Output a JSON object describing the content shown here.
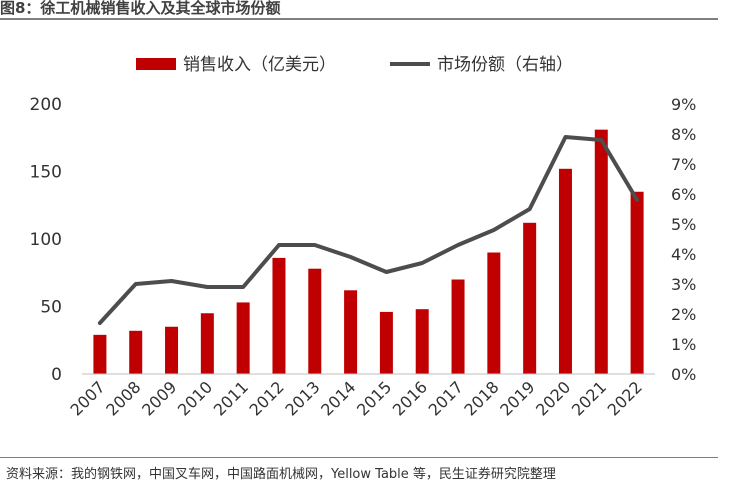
{
  "figure": {
    "title": "图8：徐工机械销售收入及其全球市场份额",
    "source": "资料来源：我的钢铁网，中国叉车网，中国路面机械网，Yellow Table 等，民生证券研究院整理"
  },
  "chart_data": {
    "type": "bar",
    "categories": [
      "2007",
      "2008",
      "2009",
      "2010",
      "2011",
      "2012",
      "2013",
      "2014",
      "2015",
      "2016",
      "2017",
      "2018",
      "2019",
      "2020",
      "2021",
      "2022"
    ],
    "series": [
      {
        "name": "销售收入（亿美元）",
        "type": "bar",
        "axis": "left",
        "color": "#c00000",
        "values": [
          29,
          32,
          35,
          45,
          53,
          86,
          78,
          62,
          46,
          48,
          70,
          90,
          112,
          152,
          181,
          135
        ]
      },
      {
        "name": "市场份额（右轴）",
        "type": "line",
        "axis": "right",
        "color": "#4d4d4d",
        "values": [
          1.7,
          3.0,
          3.1,
          2.9,
          2.9,
          4.3,
          4.3,
          3.9,
          3.4,
          3.7,
          4.3,
          4.8,
          5.5,
          7.9,
          7.8,
          5.8
        ]
      }
    ],
    "left_axis": {
      "ylim": [
        0,
        200
      ],
      "ticks": [
        "0",
        "50",
        "100",
        "150",
        "200"
      ],
      "tick_values": [
        0,
        50,
        100,
        150,
        200
      ]
    },
    "right_axis": {
      "ylim": [
        0,
        9
      ],
      "ticks": [
        "0%",
        "1%",
        "2%",
        "3%",
        "4%",
        "5%",
        "6%",
        "7%",
        "8%",
        "9%"
      ],
      "tick_values": [
        0,
        1,
        2,
        3,
        4,
        5,
        6,
        7,
        8,
        9
      ]
    },
    "legend": "top-center",
    "grid": false
  }
}
